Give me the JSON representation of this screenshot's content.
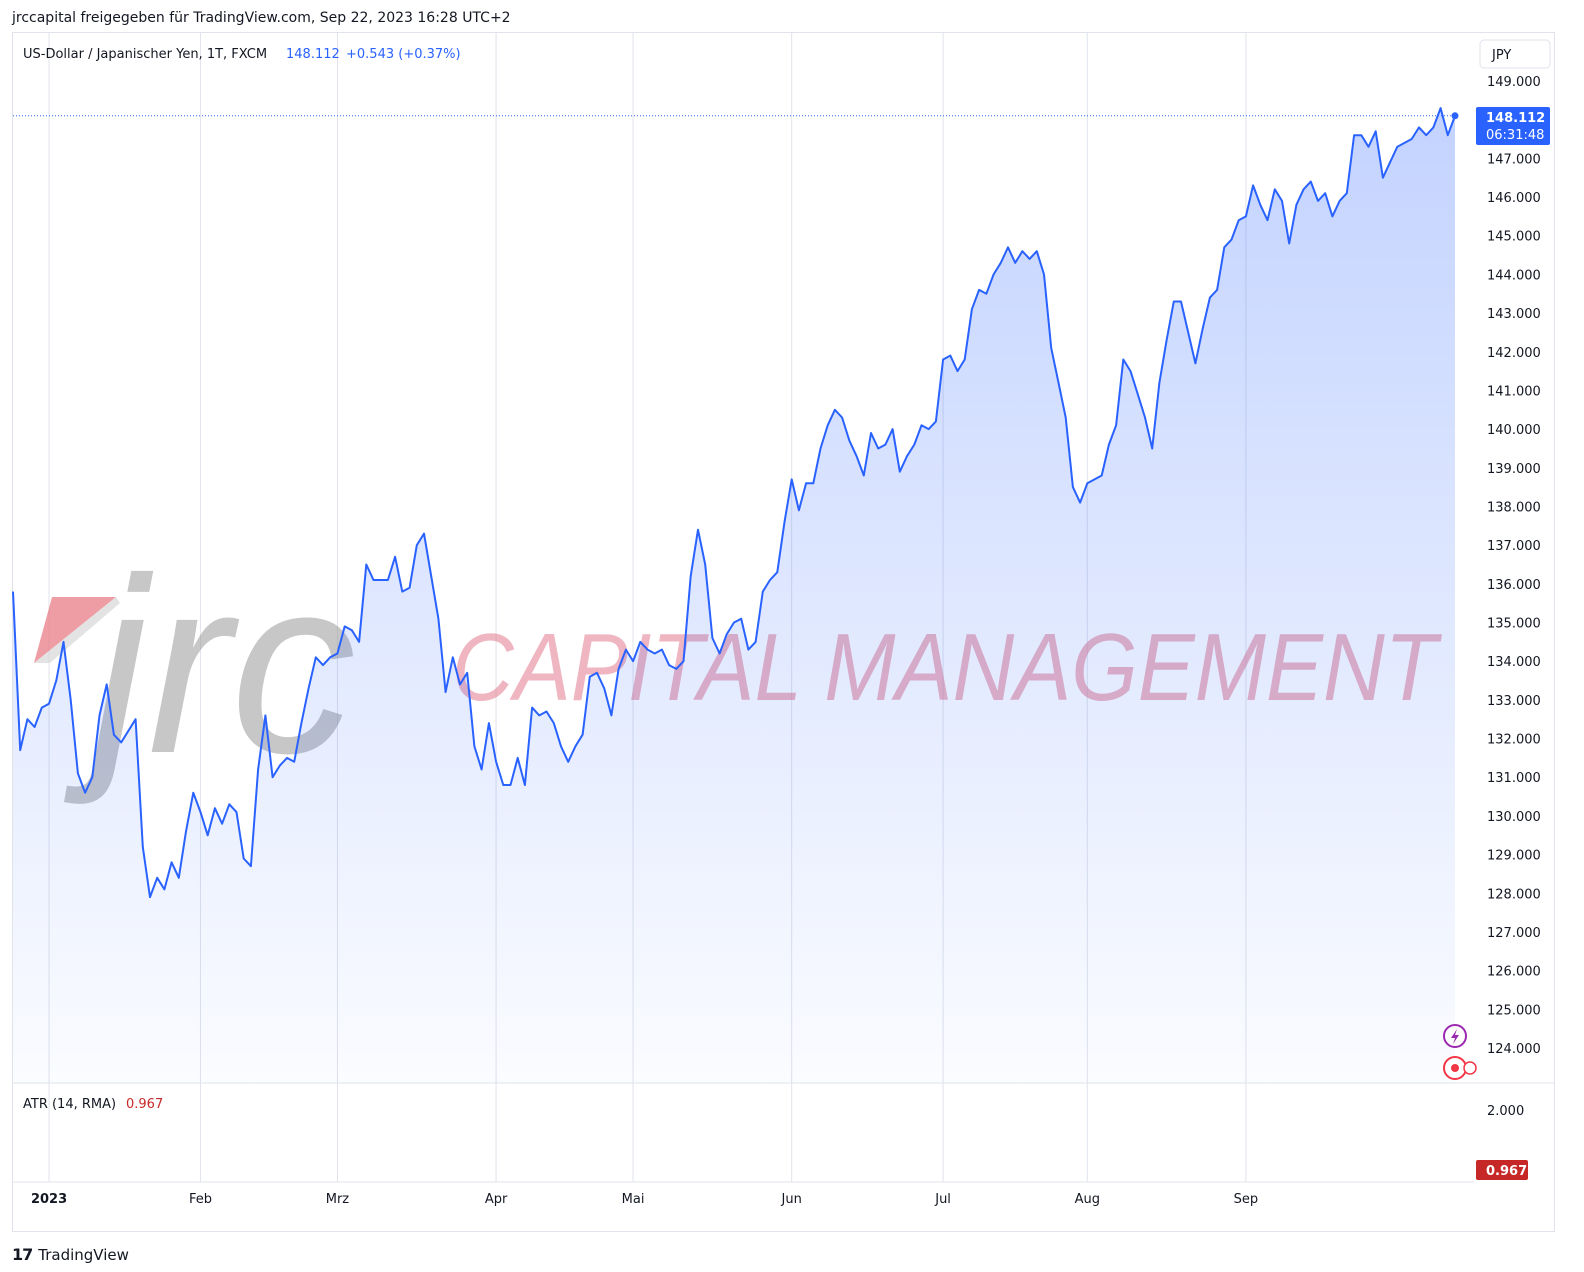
{
  "header": {
    "attribution": "jrccapital freigegeben für TradingView.com, Sep 22, 2023 16:28 UTC+2"
  },
  "legend": {
    "symbol": "US-Dollar / Japanischer Yen, 1T, FXCM",
    "last": "148.112",
    "change": "+0.543 (+0.37%)"
  },
  "currency_button": "JPY",
  "price_tag": {
    "price": "148.112",
    "countdown": "06:31:48"
  },
  "indicator": {
    "label": "ATR (14, RMA)",
    "value": "0.967",
    "axis_label": "2.000",
    "tag": "0.967"
  },
  "watermark": {
    "logo_text": "jrc",
    "text": "CAPITAL MANAGEMENT"
  },
  "footer": {
    "logo_mark": "17",
    "brand": "TradingView"
  },
  "colors": {
    "line": "#2962ff",
    "fill": "#2962ff",
    "atr": "#c62828",
    "watermark": "#e8a0ae",
    "grid": "#e0e3eb"
  },
  "chart_data": {
    "type": "area",
    "ylim": [
      123,
      149.5
    ],
    "yticks": [
      "149.000",
      "147.000",
      "146.000",
      "145.000",
      "144.000",
      "143.000",
      "142.000",
      "141.000",
      "140.000",
      "139.000",
      "138.000",
      "137.000",
      "136.000",
      "135.000",
      "134.000",
      "133.000",
      "132.000",
      "131.000",
      "130.000",
      "129.000",
      "128.000",
      "127.000",
      "126.000",
      "125.000",
      "124.000"
    ],
    "month_labels": [
      "2023",
      "Feb",
      "Mrz",
      "Apr",
      "Mai",
      "Jun",
      "Jul",
      "Aug",
      "Sep"
    ],
    "month_index": [
      5,
      26,
      45,
      67,
      86,
      108,
      129,
      149,
      171
    ],
    "series": [
      {
        "values": [
          135.8,
          131.7,
          132.5,
          132.3,
          132.8,
          132.9,
          133.5,
          134.5,
          133.0,
          131.1,
          130.6,
          131.0,
          132.6,
          133.4,
          132.1,
          131.9,
          132.2,
          132.5,
          129.2,
          127.9,
          128.4,
          128.1,
          128.8,
          128.4,
          129.6,
          130.6,
          130.1,
          129.5,
          130.2,
          129.8,
          130.3,
          130.1,
          128.9,
          128.7,
          131.2,
          132.6,
          131.0,
          131.3,
          131.5,
          131.4,
          132.4,
          133.3,
          134.1,
          133.9,
          134.1,
          134.2,
          134.9,
          134.8,
          134.5,
          136.5,
          136.1,
          136.1,
          136.1,
          136.7,
          135.8,
          135.9,
          137.0,
          137.3,
          136.2,
          135.1,
          133.2,
          134.1,
          133.4,
          133.7,
          131.8,
          131.2,
          132.4,
          131.4,
          130.8,
          130.8,
          131.5,
          130.8,
          132.8,
          132.6,
          132.7,
          132.4,
          131.8,
          131.4,
          131.8,
          132.1,
          133.6,
          133.7,
          133.3,
          132.6,
          133.8,
          134.3,
          134.0,
          134.5,
          134.3,
          134.2,
          134.3,
          133.9,
          133.8,
          134.0,
          136.2,
          137.4,
          136.5,
          134.6,
          134.2,
          134.7,
          135.0,
          135.1,
          134.3,
          134.5,
          135.8,
          136.1,
          136.3,
          137.6,
          138.7,
          137.9,
          138.6,
          138.6,
          139.5,
          140.1,
          140.5,
          140.3,
          139.7,
          139.3,
          138.8,
          139.9,
          139.5,
          139.6,
          140.0,
          138.9,
          139.3,
          139.6,
          140.1,
          140.0,
          140.2,
          141.8,
          141.9,
          141.5,
          141.8,
          143.1,
          143.6,
          143.5,
          144.0,
          144.3,
          144.7,
          144.3,
          144.6,
          144.4,
          144.6,
          144.0,
          142.1,
          141.2,
          140.3,
          138.5,
          138.1,
          138.6,
          138.7,
          138.8,
          139.6,
          140.1,
          141.8,
          141.5,
          140.9,
          140.3,
          139.5,
          141.2,
          142.3,
          143.3,
          143.3,
          142.5,
          141.7,
          142.6,
          143.4,
          143.6,
          144.7,
          144.9,
          145.4,
          145.5,
          146.3,
          145.8,
          145.4,
          146.2,
          145.9,
          144.8,
          145.8,
          146.2,
          146.4,
          145.9,
          146.1,
          145.5,
          145.9,
          146.1,
          147.6,
          147.6,
          147.3,
          147.7,
          146.5,
          146.9,
          147.3,
          147.4,
          147.5,
          147.8,
          147.6,
          147.8,
          148.3,
          147.6,
          148.1
        ]
      }
    ]
  }
}
